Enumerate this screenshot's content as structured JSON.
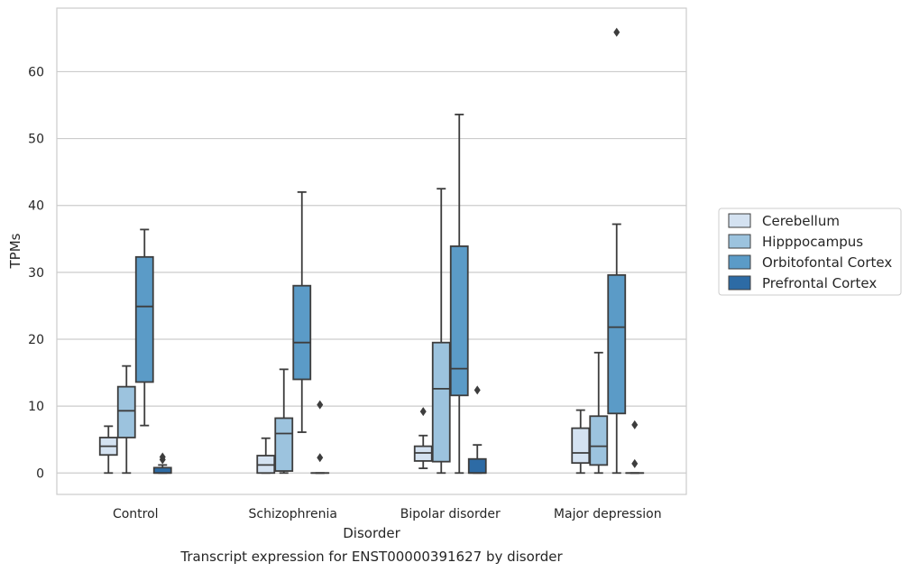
{
  "chart_data": {
    "type": "box",
    "title": "",
    "caption": "Transcript expression for ENST00000391627 by disorder",
    "xlabel": "Disorder",
    "ylabel": "TPMs",
    "ylim": [
      -3.2,
      69.5
    ],
    "yticks": [
      0,
      10,
      20,
      30,
      40,
      50,
      60
    ],
    "grid": "horizontal",
    "legend_position": "right",
    "categories": [
      "Control",
      "Schizophrenia",
      "Bipolar disorder",
      "Major depression"
    ],
    "series": [
      {
        "name": "Cerebellum",
        "color": "#d4e2f1",
        "boxes": [
          {
            "whislo": 0,
            "q1": 2.7,
            "med": 4.0,
            "q3": 5.3,
            "whishi": 7.0,
            "fliers": []
          },
          {
            "whislo": 0,
            "q1": 0.0,
            "med": 1.2,
            "q3": 2.6,
            "whishi": 5.2,
            "fliers": []
          },
          {
            "whislo": 0.7,
            "q1": 1.8,
            "med": 3.0,
            "q3": 4.0,
            "whishi": 5.6,
            "fliers": [
              9.2
            ]
          },
          {
            "whislo": 0,
            "q1": 1.5,
            "med": 3.0,
            "q3": 6.7,
            "whishi": 9.4,
            "fliers": []
          }
        ]
      },
      {
        "name": "Hipppocampus",
        "color": "#9cc3de",
        "boxes": [
          {
            "whislo": 0,
            "q1": 5.3,
            "med": 9.3,
            "q3": 12.9,
            "whishi": 16.0,
            "fliers": []
          },
          {
            "whislo": 0,
            "q1": 0.3,
            "med": 5.9,
            "q3": 8.2,
            "whishi": 15.5,
            "fliers": []
          },
          {
            "whislo": 0,
            "q1": 1.7,
            "med": 12.6,
            "q3": 19.5,
            "whishi": 42.5,
            "fliers": []
          },
          {
            "whislo": 0,
            "q1": 1.2,
            "med": 4.0,
            "q3": 8.5,
            "whishi": 18.0,
            "fliers": []
          }
        ]
      },
      {
        "name": "Orbitofontal Cortex",
        "color": "#5b9bc7",
        "boxes": [
          {
            "whislo": 7.1,
            "q1": 13.6,
            "med": 24.9,
            "q3": 32.3,
            "whishi": 36.4,
            "fliers": []
          },
          {
            "whislo": 6.1,
            "q1": 14.0,
            "med": 19.5,
            "q3": 28.0,
            "whishi": 42.0,
            "fliers": []
          },
          {
            "whislo": 0,
            "q1": 11.6,
            "med": 15.6,
            "q3": 33.9,
            "whishi": 53.6,
            "fliers": []
          },
          {
            "whislo": 0,
            "q1": 8.9,
            "med": 21.8,
            "q3": 29.6,
            "whishi": 37.2,
            "fliers": [
              65.9
            ]
          }
        ]
      },
      {
        "name": "Prefrontal Cortex",
        "color": "#2d6ba5",
        "boxes": [
          {
            "whislo": 0,
            "q1": 0.0,
            "med": 0.0,
            "q3": 0.8,
            "whishi": 1.2,
            "fliers": [
              2.0,
              2.4
            ]
          },
          {
            "whislo": 0,
            "q1": 0.0,
            "med": 0.0,
            "q3": 0.0,
            "whishi": 0.0,
            "fliers": [
              2.3,
              10.2
            ]
          },
          {
            "whislo": 0,
            "q1": 0.0,
            "med": 0.0,
            "q3": 2.1,
            "whishi": 4.2,
            "fliers": [
              12.4
            ]
          },
          {
            "whislo": 0,
            "q1": 0.0,
            "med": 0.0,
            "q3": 0.0,
            "whishi": 0.0,
            "fliers": [
              1.4,
              7.2
            ]
          }
        ]
      }
    ]
  }
}
